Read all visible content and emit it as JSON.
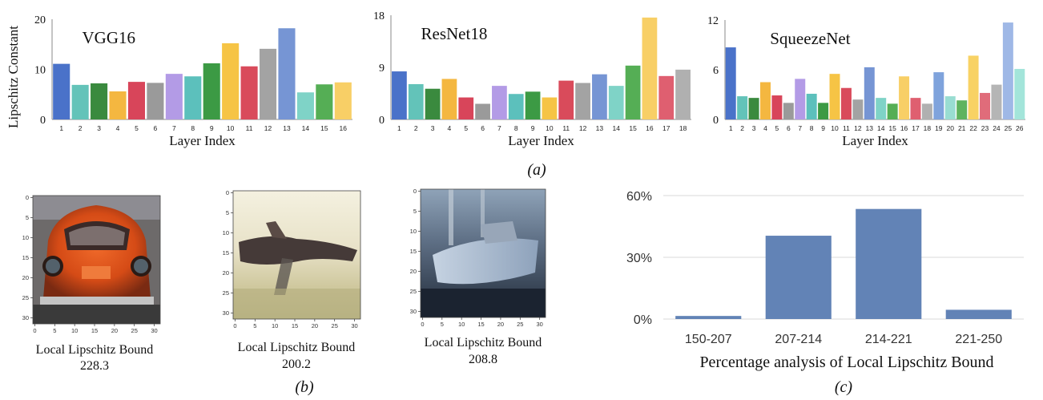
{
  "subfig_labels": {
    "a": "(a)",
    "b": "(b)",
    "c": "(c)"
  },
  "ylabel_top": "Lipschitz Constant",
  "colors": {
    "palette": [
      "#4a72c9",
      "#63c3b9",
      "#3a8a3e",
      "#f4b740",
      "#d8455a",
      "#9a9a9a",
      "#b39be6",
      "#5cc0bc",
      "#3c9a44",
      "#f6c445",
      "#d94b5b",
      "#a3a3a3",
      "#7695d4",
      "#7fd3c7",
      "#55ae55",
      "#f8cf66",
      "#df5f70"
    ],
    "bar_c": "#6283b6",
    "grid": "#d9d9d9"
  },
  "chart_data": [
    {
      "type": "bar",
      "title": "VGG16",
      "xlabel": "Layer Index",
      "ylabel": "Lipschitz Constant",
      "ylim": [
        0,
        20
      ],
      "yticks": [
        "0",
        "10",
        "20"
      ],
      "categories": [
        "1",
        "2",
        "3",
        "4",
        "5",
        "6",
        "7",
        "8",
        "9",
        "10",
        "11",
        "12",
        "13",
        "14",
        "15",
        "16"
      ],
      "values": [
        11.1,
        6.9,
        7.2,
        5.6,
        7.5,
        7.3,
        9.1,
        8.6,
        11.2,
        15.2,
        10.6,
        14.1,
        18.2,
        5.4,
        7.0,
        7.4
      ],
      "bar_colors": [
        "#4a72c9",
        "#63c3b9",
        "#3a8a3e",
        "#f4b740",
        "#d8455a",
        "#9a9a9a",
        "#b39be6",
        "#5cc0bc",
        "#3c9a44",
        "#f6c445",
        "#d94b5b",
        "#a3a3a3",
        "#7695d4",
        "#7fd3c7",
        "#55ae55",
        "#f8cf66"
      ]
    },
    {
      "type": "bar",
      "title": "ResNet18",
      "xlabel": "Layer Index",
      "ylim": [
        0,
        18
      ],
      "yticks": [
        "0",
        "9",
        "18"
      ],
      "categories": [
        "1",
        "2",
        "3",
        "4",
        "5",
        "6",
        "7",
        "8",
        "9",
        "10",
        "11",
        "12",
        "13",
        "14",
        "15",
        "16",
        "17",
        "18"
      ],
      "values": [
        8.3,
        6.1,
        5.3,
        7.0,
        3.8,
        2.7,
        5.8,
        4.4,
        4.8,
        3.8,
        6.7,
        6.3,
        7.8,
        5.8,
        9.3,
        17.6,
        7.5,
        8.6
      ],
      "bar_colors": [
        "#4a72c9",
        "#63c3b9",
        "#3a8a3e",
        "#f4b740",
        "#d8455a",
        "#9a9a9a",
        "#b39be6",
        "#5cc0bc",
        "#3c9a44",
        "#f6c445",
        "#d94b5b",
        "#a3a3a3",
        "#7695d4",
        "#7fd3c7",
        "#55ae55",
        "#f8cf66",
        "#df5f70",
        "#b0b0b0"
      ]
    },
    {
      "type": "bar",
      "title": "SqueezeNet",
      "xlabel": "Layer Index",
      "ylim": [
        0,
        12
      ],
      "yticks": [
        "0",
        "6",
        "12"
      ],
      "categories": [
        "1",
        "2",
        "3",
        "4",
        "5",
        "6",
        "7",
        "8",
        "9",
        "10",
        "11",
        "12",
        "13",
        "14",
        "15",
        "16",
        "17",
        "18",
        "19",
        "20",
        "21",
        "22",
        "23",
        "24",
        "25",
        "26"
      ],
      "values": [
        8.7,
        2.8,
        2.6,
        4.5,
        2.9,
        2.0,
        4.9,
        3.1,
        2.0,
        5.5,
        3.8,
        2.4,
        6.3,
        2.6,
        1.9,
        5.2,
        2.6,
        1.9,
        5.7,
        2.8,
        2.3,
        7.7,
        3.2,
        4.2,
        11.7,
        6.1
      ],
      "bar_colors": [
        "#4a72c9",
        "#63c3b9",
        "#3a8a3e",
        "#f4b740",
        "#d8455a",
        "#9a9a9a",
        "#b39be6",
        "#5cc0bc",
        "#3c9a44",
        "#f6c445",
        "#d94b5b",
        "#a3a3a3",
        "#7695d4",
        "#7fd3c7",
        "#55ae55",
        "#f8cf66",
        "#df5f70",
        "#b0b0b0",
        "#7fa3dc",
        "#99ddd2",
        "#5fb35f",
        "#f8d264",
        "#e06c7a",
        "#b5b5b5",
        "#9fb8e6",
        "#a3e5da"
      ]
    },
    {
      "type": "bar",
      "title": "",
      "xlabel": "Percentage analysis of Local Lipschitz Bound",
      "ylim": [
        0,
        60
      ],
      "yticks": [
        "0%",
        "30%",
        "60%"
      ],
      "categories": [
        "150-207",
        "207-214",
        "214-221",
        "221-250"
      ],
      "values": [
        1.5,
        40.5,
        53.5,
        4.5
      ]
    }
  ],
  "images": [
    {
      "caption_line1": "Local Lipschitz Bound",
      "caption_line2": "228.3",
      "yticks": [
        "0",
        "5",
        "10",
        "15",
        "20",
        "25",
        "30"
      ],
      "xticks": [
        "0",
        "5",
        "10",
        "15",
        "20",
        "25",
        "30"
      ]
    },
    {
      "caption_line1": "Local Lipschitz Bound",
      "caption_line2": "200.2",
      "yticks": [
        "0",
        "5",
        "10",
        "15",
        "20",
        "25",
        "30"
      ],
      "xticks": [
        "0",
        "5",
        "10",
        "15",
        "20",
        "25",
        "30"
      ]
    },
    {
      "caption_line1": "Local Lipschitz Bound",
      "caption_line2": "208.8",
      "yticks": [
        "0",
        "5",
        "10",
        "15",
        "20",
        "25",
        "30"
      ],
      "xticks": [
        "0",
        "5",
        "10",
        "15",
        "20",
        "25",
        "30"
      ]
    }
  ]
}
